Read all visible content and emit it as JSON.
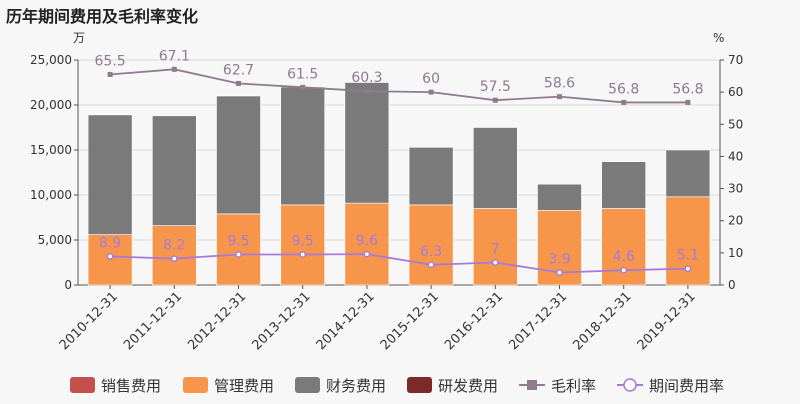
{
  "chart_data": {
    "type": "bar",
    "title": "历年期间费用及毛利率变化",
    "categories": [
      "2010-12-31",
      "2011-12-31",
      "2012-12-31",
      "2013-12-31",
      "2014-12-31",
      "2015-12-31",
      "2016-12-31",
      "2017-12-31",
      "2018-12-31",
      "2019-12-31"
    ],
    "left_axis": {
      "unit": "万",
      "ylim": [
        0,
        25000
      ],
      "ticks": [
        "0",
        "5,000",
        "10,000",
        "15,000",
        "20,000",
        "25,000"
      ]
    },
    "right_axis": {
      "unit": "%",
      "ylim": [
        0,
        70
      ],
      "ticks": [
        "0",
        "10",
        "20",
        "30",
        "40",
        "50",
        "60",
        "70"
      ]
    },
    "grid": true,
    "legend_position": "bottom",
    "series": [
      {
        "name": "销售费用",
        "kind": "bar",
        "color": "#c4504d",
        "values": [
          0,
          0,
          0,
          0,
          0,
          0,
          0,
          0,
          0,
          0
        ]
      },
      {
        "name": "管理费用",
        "kind": "bar",
        "color": "#f7964b",
        "values": [
          5600,
          6600,
          7900,
          8900,
          9100,
          8900,
          8500,
          8300,
          8500,
          9800
        ]
      },
      {
        "name": "财务费用",
        "kind": "bar",
        "color": "#7a7a7a",
        "values": [
          13300,
          12200,
          13100,
          13100,
          13400,
          6400,
          9000,
          2900,
          5200,
          5200
        ]
      },
      {
        "name": "研发费用",
        "kind": "bar",
        "color": "#7b2a2a",
        "values": [
          0,
          0,
          0,
          0,
          0,
          0,
          0,
          0,
          0,
          0
        ]
      },
      {
        "name": "毛利率",
        "kind": "line",
        "axis": "right",
        "color": "#8f7a90",
        "marker": "square",
        "values": [
          65.5,
          67.1,
          62.7,
          61.5,
          60.3,
          60,
          57.5,
          58.6,
          56.8,
          56.8
        ],
        "labels": [
          "65.5",
          "67.1",
          "62.7",
          "61.5",
          "60.3",
          "60",
          "57.5",
          "58.6",
          "56.8",
          "56.8"
        ]
      },
      {
        "name": "期间费用率",
        "kind": "line",
        "axis": "right",
        "color": "#a67ad8",
        "marker": "circle",
        "values": [
          8.9,
          8.2,
          9.5,
          9.5,
          9.6,
          6.3,
          7,
          3.9,
          4.6,
          5.1
        ],
        "labels": [
          "8.9",
          "8.2",
          "9.5",
          "9.5",
          "9.6",
          "6.3",
          "7",
          "3.9",
          "4.6",
          "5.1"
        ]
      }
    ]
  }
}
